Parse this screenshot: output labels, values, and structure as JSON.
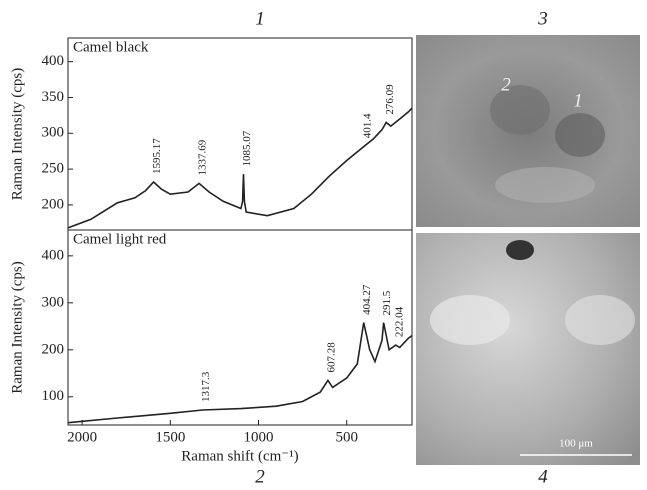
{
  "chart_data": [
    {
      "type": "line",
      "sample": "Camel black",
      "ylabel": "Raman Intensity (cps)",
      "panel": "1",
      "x": [
        2080,
        1950,
        1800,
        1700,
        1640,
        1595,
        1550,
        1500,
        1400,
        1337,
        1280,
        1200,
        1100,
        1090,
        1085,
        1080,
        1070,
        950,
        800,
        700,
        600,
        500,
        401,
        350,
        300,
        276,
        250,
        200,
        150,
        130
      ],
      "values": [
        168,
        180,
        203,
        210,
        220,
        232,
        222,
        215,
        218,
        230,
        218,
        205,
        195,
        205,
        243,
        205,
        190,
        185,
        195,
        215,
        240,
        262,
        282,
        292,
        305,
        315,
        310,
        320,
        330,
        335
      ],
      "color": "#222",
      "xlim": [
        2080,
        130
      ],
      "ylim": [
        165,
        433
      ],
      "yticks": [
        200,
        250,
        300,
        350,
        400
      ],
      "peaks": [
        1595.17,
        1337.69,
        1085.07,
        401.4,
        276.09
      ]
    },
    {
      "type": "line",
      "sample": "Camel light red",
      "ylabel": "Raman Intensity (cps)",
      "xlabel": "Raman shift (cm⁻¹)",
      "panel": "2",
      "x": [
        2080,
        1800,
        1500,
        1317,
        1100,
        900,
        750,
        650,
        607,
        580,
        500,
        440,
        404,
        370,
        340,
        300,
        291,
        260,
        222,
        200,
        150,
        130
      ],
      "values": [
        45,
        55,
        65,
        72,
        75,
        80,
        90,
        110,
        135,
        120,
        140,
        170,
        258,
        200,
        175,
        220,
        258,
        200,
        210,
        205,
        225,
        230
      ],
      "color": "#222",
      "xlim": [
        2080,
        130
      ],
      "ylim": [
        40,
        455
      ],
      "yticks": [
        100,
        200,
        300,
        400
      ],
      "xticks": [
        2000,
        1500,
        1000,
        500
      ],
      "peaks": [
        1317.3,
        607.28,
        404.27,
        291.5,
        222.04
      ]
    }
  ],
  "images": [
    {
      "panel": "3",
      "markers": [
        "2",
        "1"
      ]
    },
    {
      "panel": "4",
      "scale_bar": "100 μm"
    }
  ]
}
